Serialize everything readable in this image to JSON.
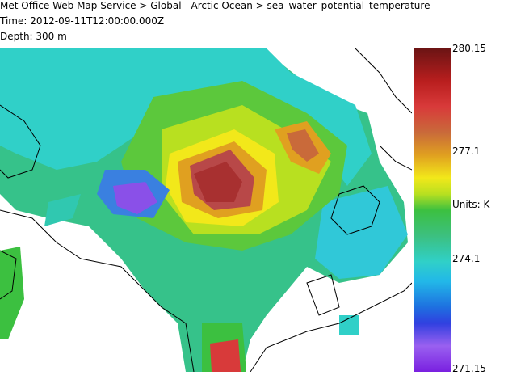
{
  "header": {
    "line1": "Met Office Web Map Service > Global - Arctic Ocean > sea_water_potential_temperature",
    "line2": "Time: 2012-09-11T12:00:00.000Z",
    "line3": "Depth: 300 m"
  },
  "colorbar": {
    "max": "280.15",
    "upper": "277.1",
    "units": "Units: K",
    "lower": "274.1",
    "min": "271.15"
  }
}
